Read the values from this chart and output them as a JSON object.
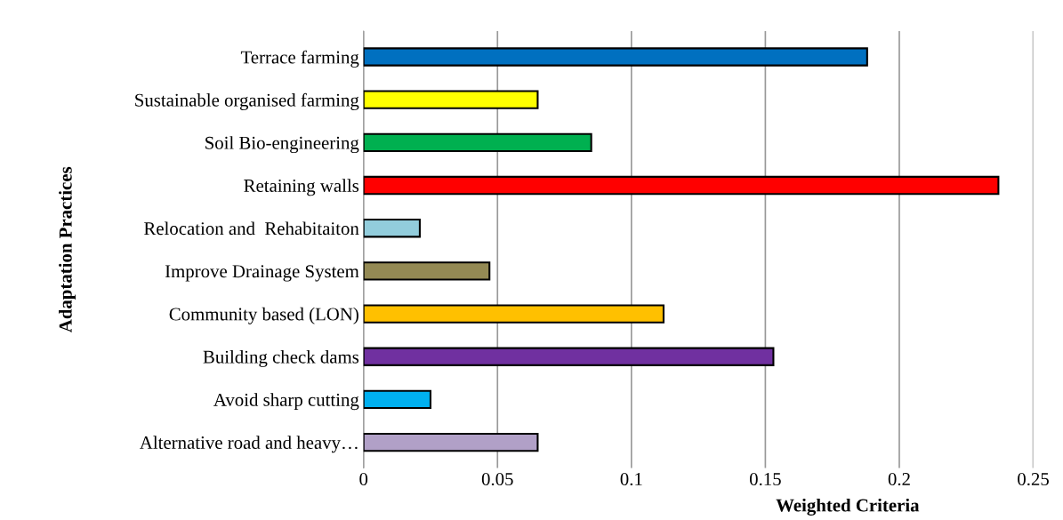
{
  "chart_data": {
    "type": "bar",
    "orientation": "horizontal",
    "xlabel": "Weighted Criteria",
    "ylabel": "Adaptation Practices",
    "categories": [
      "Terrace farming",
      "Sustainable organised farming",
      "Soil Bio-engineering",
      "Retaining walls",
      "Relocation and  Rehabitaiton",
      "Improve Drainage System",
      "Community based (LON)",
      "Building check dams",
      "Avoid sharp cutting",
      "Alternative road and heavy…"
    ],
    "values": [
      0.188,
      0.065,
      0.085,
      0.237,
      0.021,
      0.047,
      0.112,
      0.153,
      0.025,
      0.065
    ],
    "colors": [
      "#0070c0",
      "#ffff00",
      "#00b050",
      "#ff0000",
      "#92cddc",
      "#948a54",
      "#ffc000",
      "#7030a0",
      "#00b0f0",
      "#b1a0c7"
    ],
    "xlim": [
      0,
      0.25
    ],
    "xticks": [
      0,
      0.05,
      0.1,
      0.15,
      0.2,
      0.25
    ],
    "grid": "x",
    "legend": false
  }
}
